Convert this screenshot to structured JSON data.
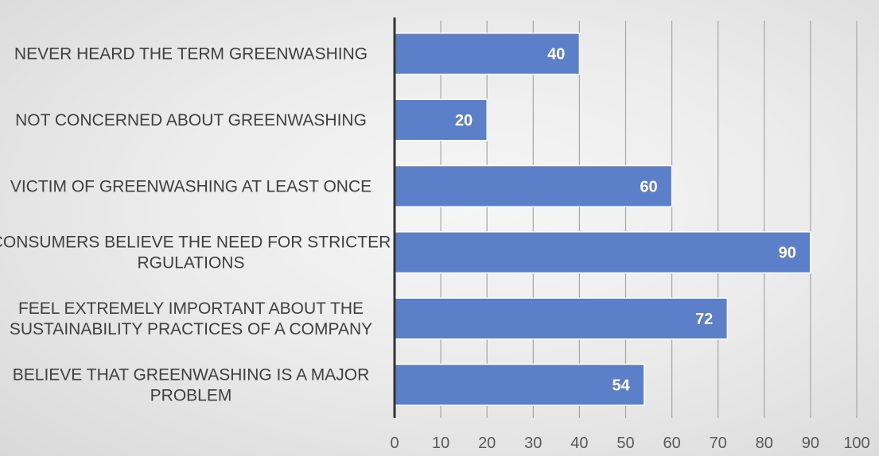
{
  "chart_data": {
    "type": "bar",
    "orientation": "horizontal",
    "categories": [
      [
        "NEVER HEARD THE TERM GREENWASHING"
      ],
      [
        "NOT CONCERNED ABOUT GREENWASHING"
      ],
      [
        "VICTIM OF GREENWASHING AT LEAST ONCE"
      ],
      [
        "CONSUMERS BELIEVE THE NEED FOR STRICTER",
        "RGULATIONS"
      ],
      [
        "FEEL EXTREMELY IMPORTANT ABOUT THE",
        "SUSTAINABILITY PRACTICES OF A COMPANY"
      ],
      [
        "BELIEVE THAT GREENWASHING IS A MAJOR",
        "PROBLEM"
      ]
    ],
    "values": [
      40,
      20,
      60,
      90,
      72,
      54
    ],
    "data_labels": [
      "40",
      "20",
      "60",
      "90",
      "72",
      "54"
    ],
    "xlim": [
      0,
      100
    ],
    "xticks": [
      0,
      10,
      20,
      30,
      40,
      50,
      60,
      70,
      80,
      90,
      100
    ],
    "grid": "vertical",
    "bar_color": "#5b7fc9",
    "bar_border": "#ffffff",
    "axis_color": "#333333",
    "grid_color": "#a6a6a6"
  }
}
